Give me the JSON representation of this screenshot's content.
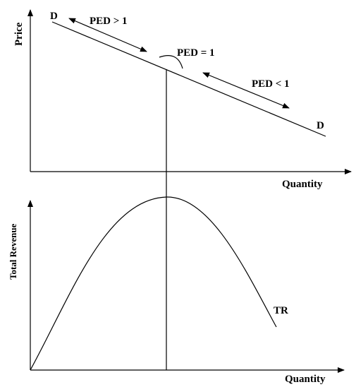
{
  "top_panel": {
    "y_axis_label": "Price",
    "x_axis_label": "Quantity",
    "curve_label_start": "D",
    "curve_label_end": "D",
    "elastic_label": "PED > 1",
    "unit_elastic_label": "PED = 1",
    "inelastic_label": "PED < 1"
  },
  "bottom_panel": {
    "y_axis_label": "Total Revenue",
    "x_axis_label": "Quantity",
    "curve_label": "TR"
  }
}
